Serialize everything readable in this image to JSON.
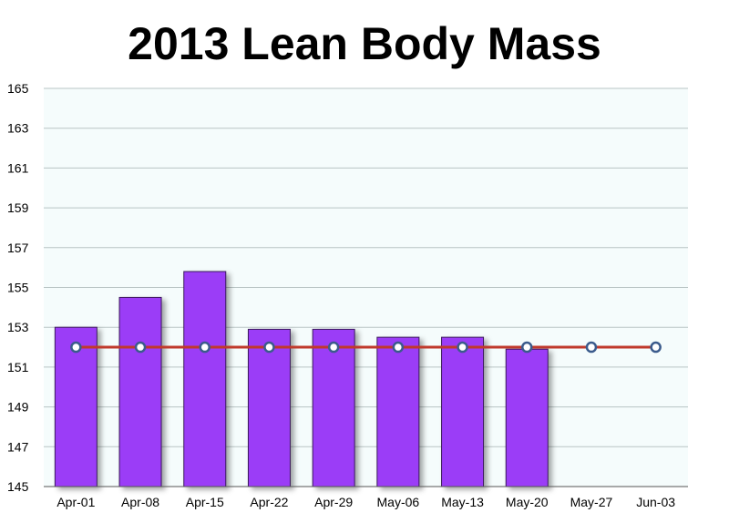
{
  "chart_data": {
    "type": "bar",
    "title": "2013 Lean Body Mass",
    "xlabel": "",
    "ylabel": "",
    "categories": [
      "Apr-01",
      "Apr-08",
      "Apr-15",
      "Apr-22",
      "Apr-29",
      "May-06",
      "May-13",
      "May-20",
      "May-27",
      "Jun-03"
    ],
    "series": [
      {
        "type": "bar",
        "values": [
          153.0,
          154.5,
          155.8,
          152.9,
          152.9,
          152.5,
          152.5,
          151.9,
          null,
          null
        ],
        "color": "#9b3cf7"
      },
      {
        "type": "line",
        "values": [
          152,
          152,
          152,
          152,
          152,
          152,
          152,
          152,
          152,
          152
        ],
        "color": "#c0392b"
      }
    ],
    "ylim": [
      145,
      165
    ],
    "yticks": [
      145,
      147,
      149,
      151,
      153,
      155,
      157,
      159,
      161,
      163,
      165
    ],
    "grid": true,
    "legend": "none"
  }
}
